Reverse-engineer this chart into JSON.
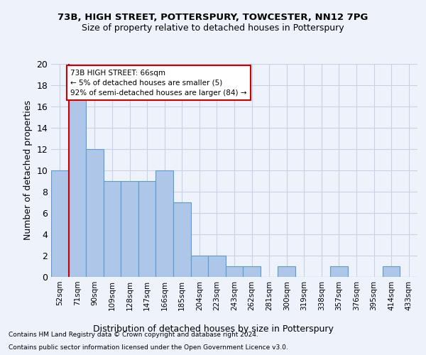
{
  "title1": "73B, HIGH STREET, POTTERSPURY, TOWCESTER, NN12 7PG",
  "title2": "Size of property relative to detached houses in Potterspury",
  "xlabel": "Distribution of detached houses by size in Potterspury",
  "ylabel": "Number of detached properties",
  "categories": [
    "52sqm",
    "71sqm",
    "90sqm",
    "109sqm",
    "128sqm",
    "147sqm",
    "166sqm",
    "185sqm",
    "204sqm",
    "223sqm",
    "243sqm",
    "262sqm",
    "281sqm",
    "300sqm",
    "319sqm",
    "338sqm",
    "357sqm",
    "376sqm",
    "395sqm",
    "414sqm",
    "433sqm"
  ],
  "values": [
    10,
    17,
    12,
    9,
    9,
    9,
    10,
    7,
    2,
    2,
    1,
    1,
    0,
    1,
    0,
    0,
    1,
    0,
    0,
    1,
    0
  ],
  "bar_color": "#aec6e8",
  "bar_edge_color": "#5b9bd5",
  "ylim": [
    0,
    20
  ],
  "yticks": [
    0,
    2,
    4,
    6,
    8,
    10,
    12,
    14,
    16,
    18,
    20
  ],
  "property_line_color": "#cc0000",
  "annotation_title": "73B HIGH STREET: 66sqm",
  "annotation_line1": "← 5% of detached houses are smaller (5)",
  "annotation_line2": "92% of semi-detached houses are larger (84) →",
  "annotation_box_color": "#cc0000",
  "footnote1": "Contains HM Land Registry data © Crown copyright and database right 2024.",
  "footnote2": "Contains public sector information licensed under the Open Government Licence v3.0.",
  "background_color": "#eef2fb",
  "axes_background": "#eef2fb",
  "grid_color": "#c8d0e8"
}
